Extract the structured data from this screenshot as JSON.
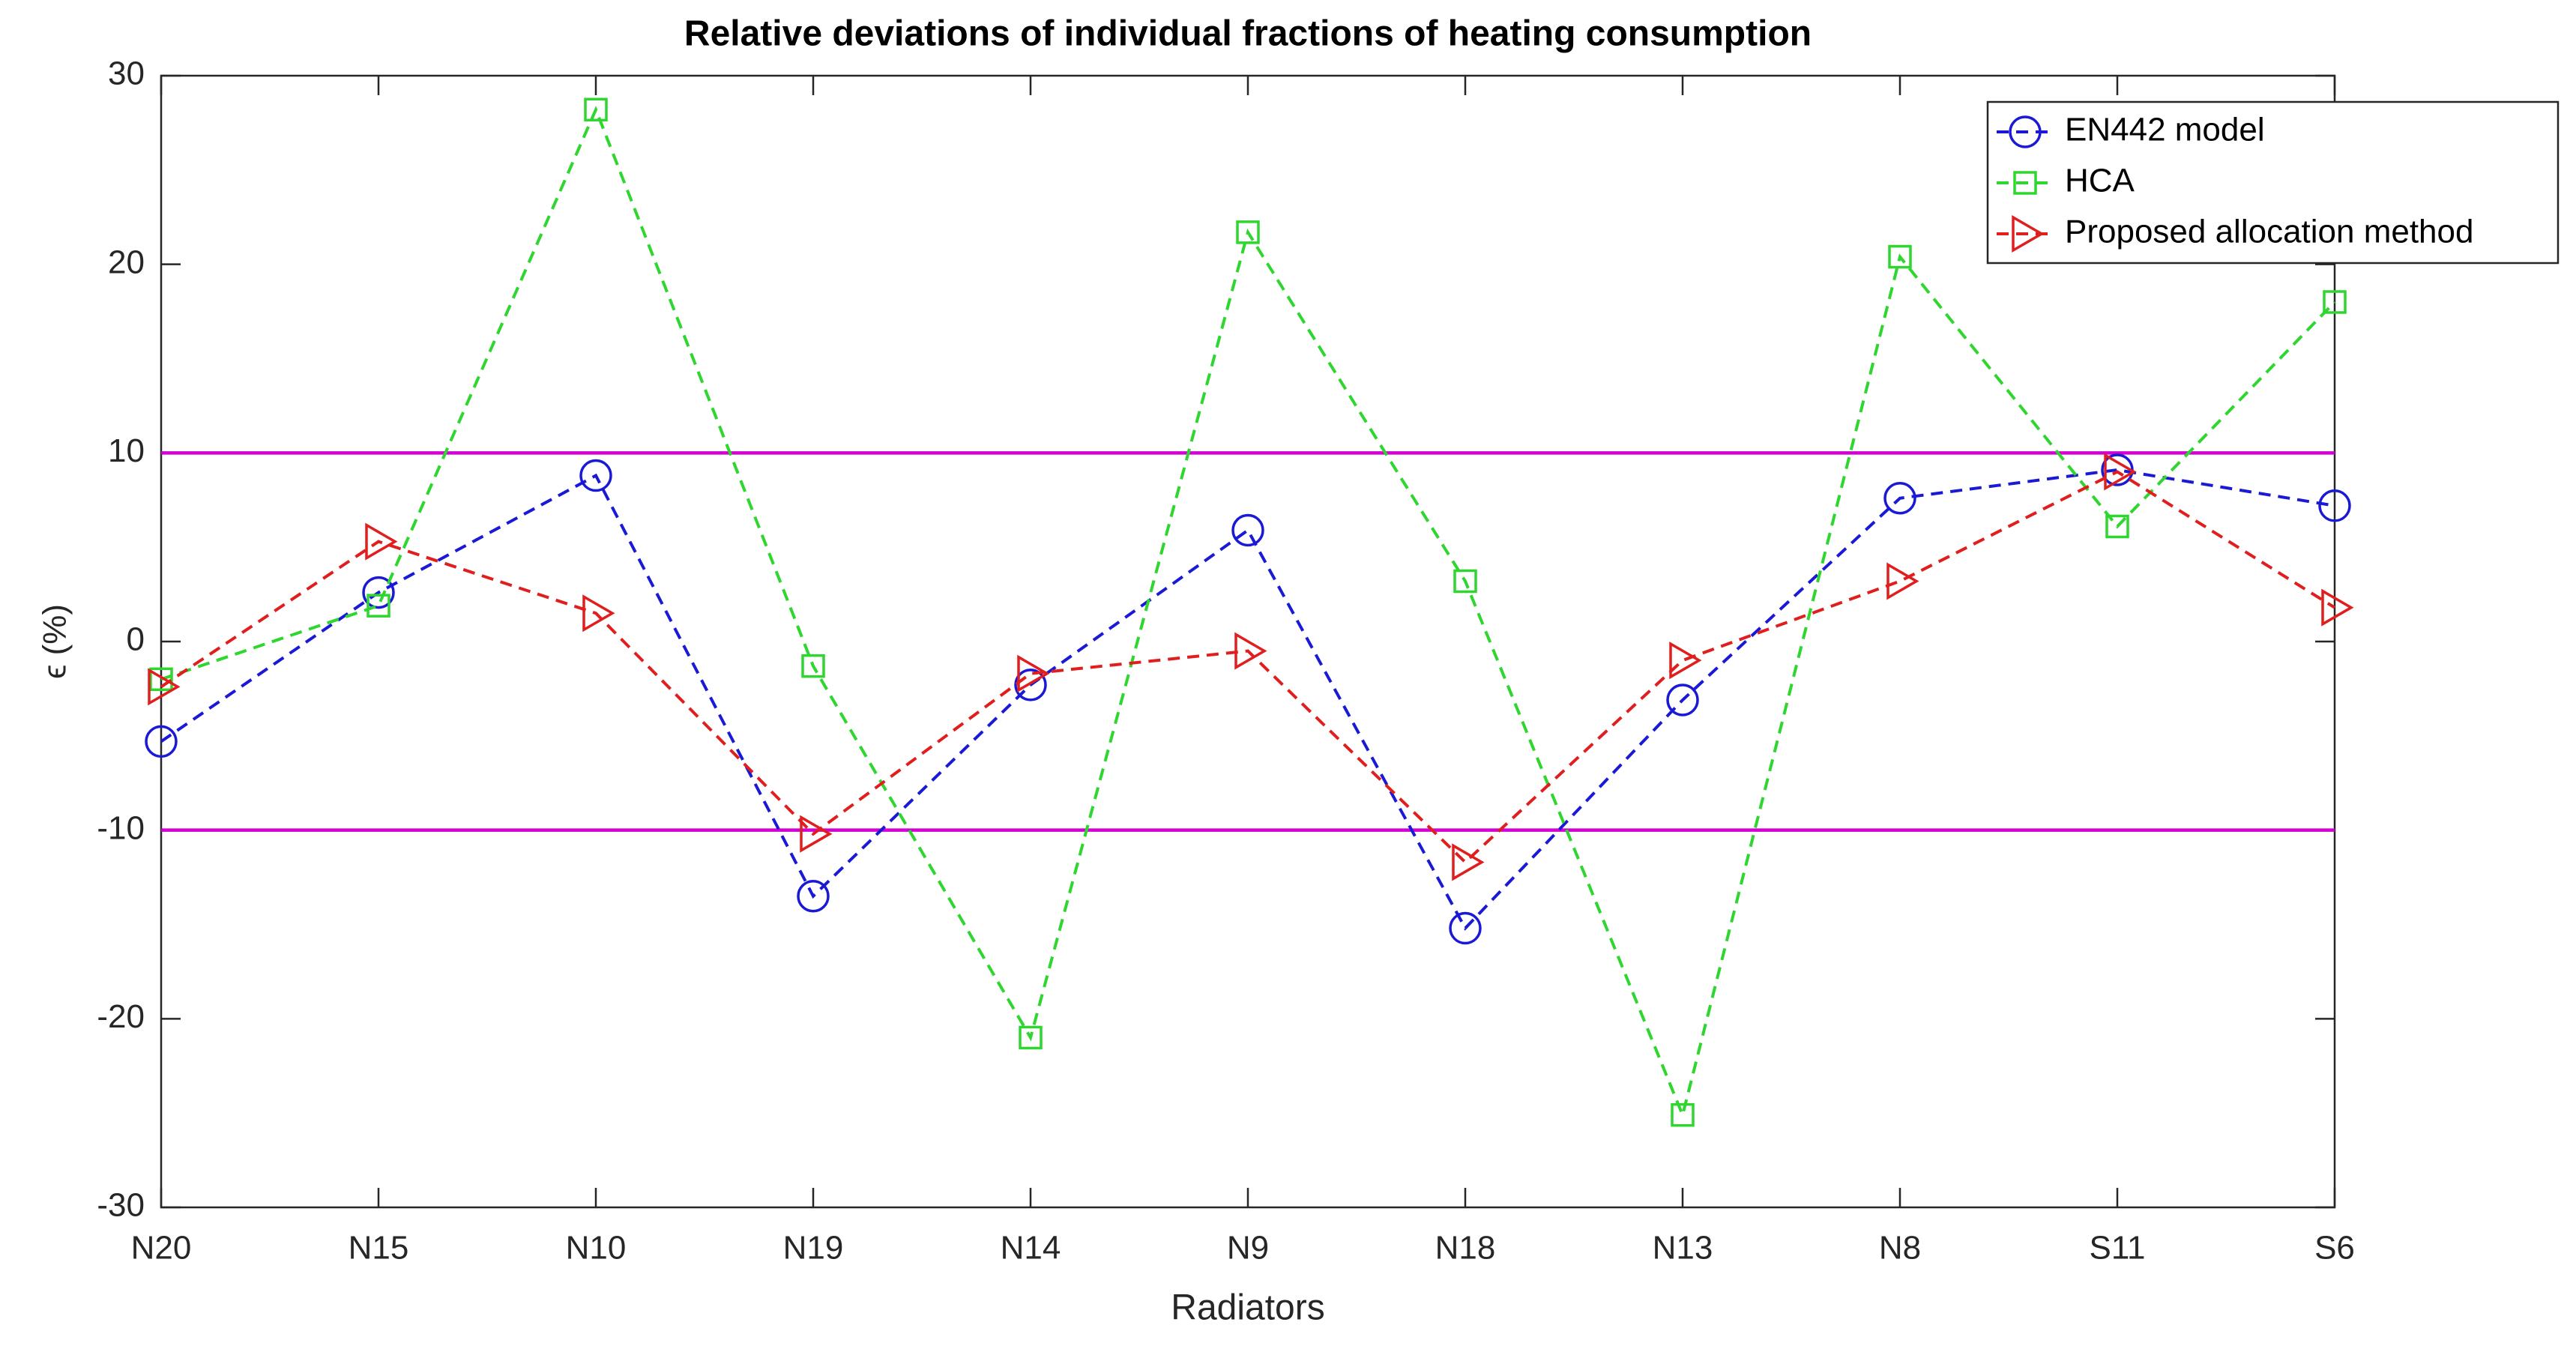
{
  "chart_data": {
    "type": "line",
    "title": "Relative deviations of individual fractions of heating consumption",
    "x_label": "Radiators",
    "y_label": "ϵ (%)",
    "categories": [
      "N20",
      "N15",
      "N10",
      "N19",
      "N14",
      "N9",
      "N18",
      "N13",
      "N8",
      "S11",
      "S6"
    ],
    "series": [
      {
        "name": "EN442 model",
        "color": "#1a1ad6",
        "marker": "circle",
        "line_style": "dashed",
        "values": [
          -5.3,
          2.6,
          8.8,
          -13.5,
          -2.3,
          5.9,
          -15.2,
          -3.1,
          7.6,
          9.1,
          7.2
        ]
      },
      {
        "name": "HCA",
        "color": "#2fd62f",
        "marker": "square",
        "line_style": "dashed",
        "values": [
          -2.0,
          1.9,
          28.2,
          -1.3,
          -21.0,
          21.7,
          3.2,
          -25.1,
          20.4,
          6.1,
          18.0
        ]
      },
      {
        "name": "Proposed allocation method",
        "color": "#e01e1e",
        "marker": "triangle-right",
        "line_style": "dashed",
        "values": [
          -2.4,
          5.3,
          1.5,
          -10.2,
          -1.7,
          -0.5,
          -11.7,
          -1.0,
          3.2,
          9.0,
          1.8
        ]
      }
    ],
    "reference_lines": {
      "color": "#d200d2",
      "values": [
        10,
        -10
      ]
    },
    "ylim": [
      -30,
      30
    ],
    "yticks": [
      -30,
      -20,
      -10,
      0,
      10,
      20,
      30
    ],
    "grid": false,
    "legend_position": "upper-right"
  }
}
